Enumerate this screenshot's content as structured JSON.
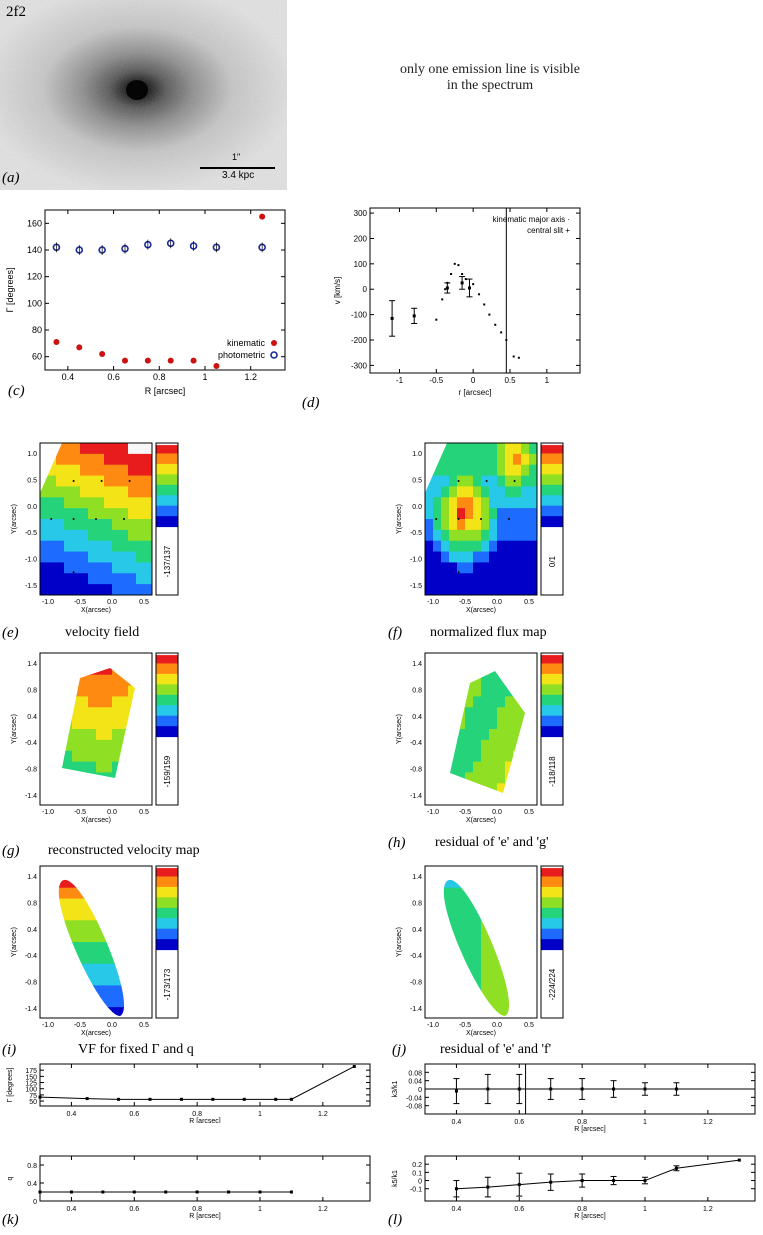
{
  "figure": {
    "galaxy_id": "2f2",
    "image_scale_arcsec": "1\"",
    "image_scale_kpc": "3.4 kpc",
    "note_line1": "only one emission line is visible",
    "note_line2": "in the spectrum"
  },
  "panel_labels": {
    "a": "(a)",
    "c": "(c)",
    "d": "(d)",
    "e": "(e)",
    "f": "(f)",
    "g": "(g)",
    "h": "(h)",
    "i": "(i)",
    "j": "(j)",
    "k": "(k)",
    "l": "(l)"
  },
  "captions": {
    "e": "velocity field",
    "f": "normalized flux map",
    "g": "reconstructed velocity map",
    "h": "residual of 'e' and 'g'",
    "i": "VF for fixed Γ and q",
    "j": "residual of 'e' and 'f'"
  },
  "map_colorbar_labels": {
    "e": "-137/137",
    "f": "0/1",
    "g": "-159/159",
    "h": "-118/118",
    "i": "-173/173",
    "j": "-224/224"
  },
  "map_axes": {
    "e": {
      "xlabel": "X(arcsec)",
      "ylabel": "Y(arcsec)",
      "xticks": [
        "-1.0",
        "-0.5",
        "0.0",
        "0.5"
      ],
      "yticks": [
        "1.0",
        "0.5",
        "0.0",
        "-0.5",
        "-1.0",
        "-1.5"
      ]
    },
    "f": {
      "xlabel": "X(arcsec)",
      "ylabel": "Y(arcsec)",
      "xticks": [
        "-1.0",
        "-0.5",
        "0.0",
        "0.5"
      ],
      "yticks": [
        "1.0",
        "0.5",
        "0.0",
        "-0.5",
        "-1.0",
        "-1.5"
      ]
    },
    "g": {
      "xlabel": "X(arcsec)",
      "ylabel": "Y(arcsec)",
      "xticks": [
        "-1.0",
        "-0.5",
        "0.0",
        "0.5"
      ],
      "yticks": [
        "1.4",
        "0.8",
        "0.4",
        "-0.4",
        "-0.8",
        "-1.4"
      ]
    },
    "h": {
      "xlabel": "X(arcsec)",
      "ylabel": "Y(arcsec)",
      "xticks": [
        "-1.0",
        "-0.5",
        "0.0",
        "0.5"
      ],
      "yticks": [
        "1.4",
        "0.8",
        "0.4",
        "-0.4",
        "-0.8",
        "-1.4"
      ]
    },
    "i": {
      "xlabel": "X(arcsec)",
      "ylabel": "Y(arcsec)",
      "xticks": [
        "-1.0",
        "-0.5",
        "0.0",
        "0.5"
      ],
      "yticks": [
        "1.4",
        "0.8",
        "0.4",
        "-0.4",
        "-0.8",
        "-1.4"
      ]
    },
    "j": {
      "xlabel": "X(arcsec)",
      "ylabel": "Y(arcsec)",
      "xticks": [
        "-1.0",
        "-0.5",
        "0.0",
        "0.5"
      ],
      "yticks": [
        "1.4",
        "0.8",
        "0.4",
        "-0.4",
        "-0.8",
        "-1.4"
      ]
    }
  },
  "colors": {
    "kinematic": "#cc1111",
    "photometric": "#1a2a99",
    "colormap": [
      "#00001a",
      "#0000c8",
      "#1e6bff",
      "#27c8e8",
      "#25d47a",
      "#8fe024",
      "#f2e416",
      "#ff8a12",
      "#e81c1c",
      "#f7f7f7"
    ]
  },
  "chart_data": [
    {
      "id": "c",
      "type": "scatter",
      "xlabel": "R [arcsec]",
      "ylabel": "Γ [degrees]",
      "xlim": [
        0.3,
        1.35
      ],
      "ylim": [
        50,
        170
      ],
      "xticks": [
        0.4,
        0.6,
        0.8,
        1.0,
        1.2
      ],
      "yticks": [
        60,
        80,
        100,
        120,
        140,
        160
      ],
      "legend_position": "bottom-right",
      "series": [
        {
          "name": "kinematic",
          "marker": "filled-circle",
          "x": [
            0.35,
            0.45,
            0.55,
            0.65,
            0.75,
            0.85,
            0.95,
            1.05,
            1.25
          ],
          "y": [
            71,
            67,
            62,
            57,
            57,
            57,
            57,
            53,
            165
          ]
        },
        {
          "name": "photometric",
          "marker": "open-circle",
          "x": [
            0.35,
            0.45,
            0.55,
            0.65,
            0.75,
            0.85,
            0.95,
            1.05,
            1.25
          ],
          "y": [
            142,
            140,
            140,
            141,
            144,
            145,
            143,
            142,
            142
          ]
        }
      ]
    },
    {
      "id": "d",
      "type": "scatter",
      "xlabel": "r [arcsec]",
      "ylabel": "v [km/s]",
      "xlim": [
        -1.4,
        1.45
      ],
      "ylim": [
        -330,
        320
      ],
      "xticks": [
        -1.0,
        -0.5,
        0.0,
        0.5,
        1.0
      ],
      "yticks": [
        -300,
        -200,
        -100,
        0,
        100,
        200,
        300
      ],
      "vline_x": 0.45,
      "legend_position": "top-right",
      "legend": [
        "kinematic major axis",
        "central slit"
      ],
      "series": [
        {
          "name": "kinematic major axis",
          "marker": "dot",
          "x": [
            -0.5,
            -0.42,
            -0.38,
            -0.35,
            -0.3,
            -0.25,
            -0.2,
            -0.15,
            -0.1,
            0.0,
            0.08,
            0.15,
            0.22,
            0.3,
            0.38,
            0.45,
            0.55,
            0.62
          ],
          "y": [
            -120,
            -40,
            0,
            25,
            60,
            100,
            95,
            60,
            40,
            20,
            -20,
            -60,
            -100,
            -140,
            -170,
            -200,
            -265,
            -270
          ]
        },
        {
          "name": "central slit",
          "marker": "errorbar",
          "x": [
            -1.1,
            -0.8,
            -0.35,
            -0.15,
            -0.05
          ],
          "y": [
            -115,
            -105,
            5,
            25,
            5
          ],
          "err": [
            70,
            30,
            20,
            25,
            35
          ]
        }
      ]
    },
    {
      "id": "k",
      "type": "line",
      "xlabel": "R [arcsec]",
      "ylabel": "Γ [degrees]",
      "xlim": [
        0.3,
        1.35
      ],
      "ylim": [
        30,
        200
      ],
      "xticks": [
        0.4,
        0.6,
        0.8,
        1.0,
        1.2
      ],
      "yticks": [
        50,
        75,
        100,
        125,
        150,
        175
      ],
      "x": [
        0.3,
        0.45,
        0.55,
        0.65,
        0.75,
        0.85,
        0.95,
        1.05,
        1.1,
        1.3
      ],
      "y": [
        66,
        60,
        57,
        57,
        57,
        57,
        57,
        57,
        57,
        190
      ]
    },
    {
      "id": "k2",
      "type": "line",
      "xlabel": "R [arcsec]",
      "ylabel": "q",
      "xlim": [
        0.3,
        1.35
      ],
      "ylim": [
        0,
        1.0
      ],
      "xticks": [
        0.4,
        0.6,
        0.8,
        1.0,
        1.2
      ],
      "yticks": [
        0.0,
        0.4,
        0.8
      ],
      "x": [
        0.3,
        0.4,
        0.5,
        0.6,
        0.7,
        0.8,
        0.9,
        1.0,
        1.1
      ],
      "y": [
        0.2,
        0.2,
        0.2,
        0.2,
        0.2,
        0.2,
        0.2,
        0.2,
        0.2
      ]
    },
    {
      "id": "l1",
      "type": "scatter",
      "xlabel": "R [arcsec]",
      "ylabel": "k3/k1",
      "xlim": [
        0.3,
        1.35
      ],
      "ylim": [
        -0.12,
        0.12
      ],
      "xticks": [
        0.4,
        0.6,
        0.8,
        1.0,
        1.2
      ],
      "yticks": [
        0.08,
        0.04,
        0.0,
        -0.04,
        -0.08
      ],
      "vline_x": 0.62,
      "hline_y": 0.0,
      "x": [
        0.4,
        0.5,
        0.6,
        0.7,
        0.8,
        0.9,
        1.0,
        1.1
      ],
      "y": [
        -0.01,
        0.0,
        0.0,
        0.0,
        0.0,
        0.0,
        0.0,
        0.0
      ],
      "err": [
        0.06,
        0.07,
        0.07,
        0.05,
        0.05,
        0.04,
        0.03,
        0.03
      ]
    },
    {
      "id": "l2",
      "type": "line",
      "xlabel": "R [arcsec]",
      "ylabel": "k5/k1",
      "xlim": [
        0.3,
        1.35
      ],
      "ylim": [
        -0.25,
        0.3
      ],
      "xticks": [
        0.4,
        0.6,
        0.8,
        1.0,
        1.2
      ],
      "yticks": [
        0.2,
        0.1,
        0.0,
        -0.1
      ],
      "x": [
        0.4,
        0.5,
        0.6,
        0.7,
        0.8,
        0.9,
        1.0,
        1.1,
        1.3
      ],
      "y": [
        -0.1,
        -0.08,
        -0.05,
        -0.02,
        0.0,
        0.0,
        0.0,
        0.15,
        0.25
      ],
      "err": [
        0.1,
        0.12,
        0.14,
        0.1,
        0.08,
        0.05,
        0.04,
        0.03,
        0.0
      ]
    }
  ]
}
